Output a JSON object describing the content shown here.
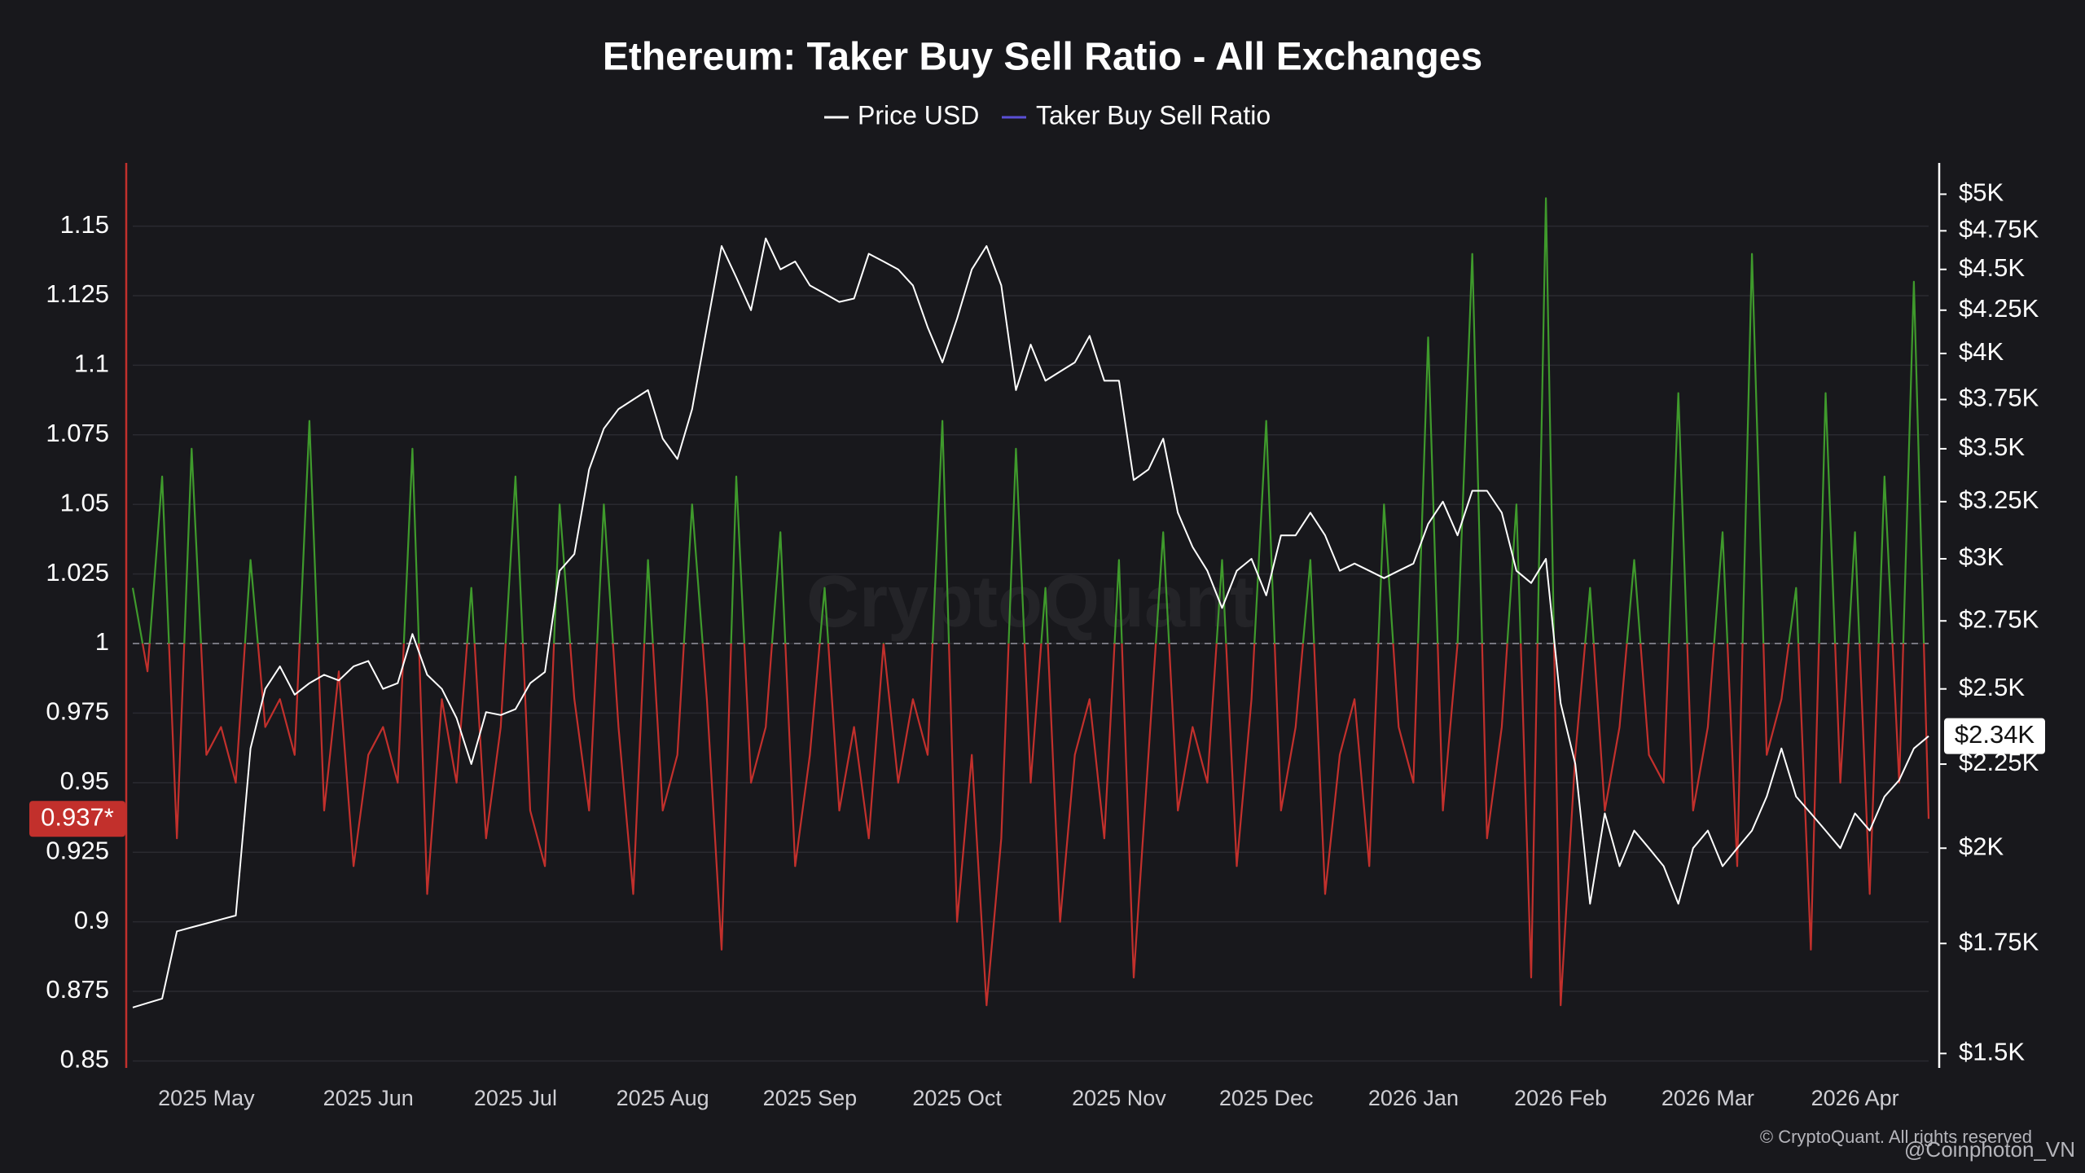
{
  "chart_data": {
    "type": "line",
    "title": "Ethereum: Taker Buy Sell Ratio - All Exchanges",
    "categories": [
      null,
      null,
      null,
      null,
      null,
      "2025 May",
      null,
      null,
      null,
      null,
      null,
      null,
      null,
      null,
      null,
      null,
      "2025 Jun",
      null,
      null,
      null,
      null,
      null,
      null,
      null,
      null,
      null,
      "2025 Jul",
      null,
      null,
      null,
      null,
      null,
      null,
      null,
      null,
      null,
      "2025 Aug",
      null,
      null,
      null,
      null,
      null,
      null,
      null,
      null,
      null,
      "2025 Sep",
      null,
      null,
      null,
      null,
      null,
      null,
      null,
      null,
      null,
      "2025 Oct",
      null,
      null,
      null,
      null,
      null,
      null,
      null,
      null,
      null,
      null,
      "2025 Nov",
      null,
      null,
      null,
      null,
      null,
      null,
      null,
      null,
      null,
      "2025 Dec",
      null,
      null,
      null,
      null,
      null,
      null,
      null,
      null,
      null,
      "2026 Jan",
      null,
      null,
      null,
      null,
      null,
      null,
      null,
      null,
      null,
      "2026 Feb",
      null,
      null,
      null,
      null,
      null,
      null,
      null,
      null,
      null,
      "2026 Mar",
      null,
      null,
      null,
      null,
      null,
      null,
      null,
      null,
      null,
      "2026 Apr",
      null,
      null,
      null,
      null,
      null
    ],
    "series": [
      {
        "name": "Price USD",
        "color": "#ffffff",
        "axis": "y2",
        "last_label": "$2.34K",
        "values": [
          1600,
          1610,
          1620,
          1780,
          1790,
          1800,
          1810,
          1820,
          2300,
          2500,
          2580,
          2480,
          2520,
          2550,
          2530,
          2580,
          2600,
          2500,
          2520,
          2700,
          2550,
          2500,
          2400,
          2250,
          2420,
          2410,
          2430,
          2520,
          2560,
          2950,
          3020,
          3400,
          3600,
          3700,
          3750,
          3800,
          3550,
          3450,
          3700,
          4150,
          4650,
          4450,
          4250,
          4700,
          4500,
          4550,
          4400,
          4350,
          4300,
          4320,
          4600,
          4550,
          4500,
          4400,
          4150,
          3950,
          4200,
          4500,
          4650,
          4400,
          3800,
          4050,
          3850,
          3900,
          3950,
          4100,
          3850,
          3850,
          3350,
          3400,
          3550,
          3200,
          3050,
          2950,
          2800,
          2950,
          3000,
          2850,
          3100,
          3100,
          3200,
          3100,
          2950,
          2980,
          2950,
          2920,
          2950,
          2980,
          3150,
          3250,
          3100,
          3300,
          3300,
          3200,
          2950,
          2900,
          3000,
          2450,
          2250,
          1850,
          2100,
          1950,
          2050,
          2000,
          1950,
          1850,
          2000,
          2050,
          1950,
          2000,
          2050,
          2150,
          2300,
          2150,
          2100,
          2050,
          2000,
          2100,
          2050,
          2150,
          2200,
          2300,
          2340
        ]
      },
      {
        "name": "Taker Buy Sell Ratio",
        "color": "#5a4fd6",
        "up_color": "#3f9a2c",
        "down_color": "#c2302c",
        "last_label": "0.937*",
        "values": [
          1.02,
          0.99,
          1.06,
          0.93,
          1.07,
          0.96,
          0.97,
          0.95,
          1.03,
          0.97,
          0.98,
          0.96,
          1.08,
          0.94,
          0.99,
          0.92,
          0.96,
          0.97,
          0.95,
          1.07,
          0.91,
          0.98,
          0.95,
          1.02,
          0.93,
          0.97,
          1.06,
          0.94,
          0.92,
          1.05,
          0.98,
          0.94,
          1.05,
          0.97,
          0.91,
          1.03,
          0.94,
          0.96,
          1.05,
          0.98,
          0.89,
          1.06,
          0.95,
          0.97,
          1.04,
          0.92,
          0.96,
          1.02,
          0.94,
          0.97,
          0.93,
          1.0,
          0.95,
          0.98,
          0.96,
          1.08,
          0.9,
          0.96,
          0.87,
          0.93,
          1.07,
          0.95,
          1.02,
          0.9,
          0.96,
          0.98,
          0.93,
          1.03,
          0.88,
          0.96,
          1.04,
          0.94,
          0.97,
          0.95,
          1.03,
          0.92,
          0.98,
          1.08,
          0.94,
          0.97,
          1.03,
          0.91,
          0.96,
          0.98,
          0.92,
          1.05,
          0.97,
          0.95,
          1.11,
          0.94,
          1.0,
          1.14,
          0.93,
          0.97,
          1.05,
          0.88,
          1.16,
          0.87,
          0.96,
          1.02,
          0.94,
          0.97,
          1.03,
          0.96,
          0.95,
          1.09,
          0.94,
          0.97,
          1.04,
          0.92,
          1.14,
          0.96,
          0.98,
          1.02,
          0.89,
          1.09,
          0.95,
          1.04,
          0.91,
          1.06,
          0.95,
          1.13,
          0.937
        ]
      }
    ],
    "baseline": 1,
    "ylim": [
      0.8475,
      1.173
    ],
    "yticks": [
      0.85,
      0.875,
      0.9,
      0.925,
      0.95,
      0.975,
      1,
      1.025,
      1.05,
      1.075,
      1.1,
      1.125,
      1.15
    ],
    "y2lim": [
      1470,
      5230
    ],
    "y2scale": "log",
    "y2ticks": [
      {
        "value": 1500,
        "label": "$1.5K"
      },
      {
        "value": 1750,
        "label": "$1.75K"
      },
      {
        "value": 2000,
        "label": "$2K"
      },
      {
        "value": 2250,
        "label": "$2.25K"
      },
      {
        "value": 2500,
        "label": "$2.5K"
      },
      {
        "value": 2750,
        "label": "$2.75K"
      },
      {
        "value": 3000,
        "label": "$3K"
      },
      {
        "value": 3250,
        "label": "$3.25K"
      },
      {
        "value": 3500,
        "label": "$3.5K"
      },
      {
        "value": 3750,
        "label": "$3.75K"
      },
      {
        "value": 4000,
        "label": "$4K"
      },
      {
        "value": 4250,
        "label": "$4.25K"
      },
      {
        "value": 4500,
        "label": "$4.5K"
      },
      {
        "value": 4750,
        "label": "$4.75K"
      },
      {
        "value": 5000,
        "label": "$5K"
      }
    ],
    "grid": true,
    "watermark": "CryptoQuant",
    "copyright": "© CryptoQuant. All rights reserved",
    "author": "@Coinphoton_VN"
  }
}
